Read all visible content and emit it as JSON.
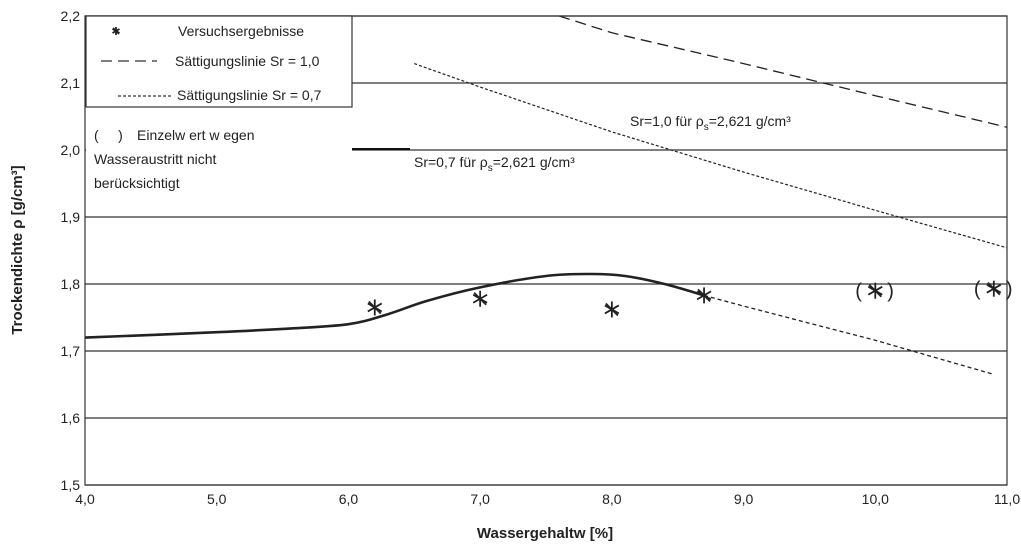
{
  "chart_data": {
    "type": "scatter",
    "xlabel": "Wassergehaltw [%]",
    "ylabel": "Trockendichte ρ [g/cm³]",
    "xlim": [
      4.0,
      11.0
    ],
    "ylim": [
      1.5,
      2.2
    ],
    "x_ticks": [
      "4,0",
      "5,0",
      "6,0",
      "7,0",
      "8,0",
      "9,0",
      "10,0",
      "11,0"
    ],
    "y_ticks": [
      "1,5",
      "1,6",
      "1,7",
      "1,8",
      "1,9",
      "2,0",
      "2,1",
      "2,2"
    ],
    "grid": "horizontal",
    "legend": {
      "items": [
        {
          "label": "Versuchsergebnisse",
          "marker": "asterisk"
        },
        {
          "label": "Sättigungslinie Sr = 1,0",
          "line": "long-dash"
        },
        {
          "label": "Sättigungslinie Sr = 0,7",
          "line": "short-dash"
        }
      ],
      "note_marker": "(     )",
      "note_lines": [
        "Einzelw ert w egen",
        "Wasseraustritt nicht",
        "berücksichtigt"
      ]
    },
    "series": [
      {
        "name": "Versuchsergebnisse",
        "kind": "points",
        "points": [
          {
            "x": 6.2,
            "y": 1.765,
            "excluded": false
          },
          {
            "x": 7.0,
            "y": 1.778,
            "excluded": false
          },
          {
            "x": 8.0,
            "y": 1.762,
            "excluded": false
          },
          {
            "x": 8.7,
            "y": 1.783,
            "excluded": false
          },
          {
            "x": 10.0,
            "y": 1.79,
            "excluded": true
          },
          {
            "x": 10.9,
            "y": 1.793,
            "excluded": true
          }
        ]
      },
      {
        "name": "Sättigungslinie Sr = 1,0",
        "kind": "line",
        "style": "long-dash",
        "x": [
          7.6,
          8.0,
          9.0,
          10.0,
          11.0
        ],
        "y": [
          2.2,
          2.175,
          2.129,
          2.081,
          2.034
        ]
      },
      {
        "name": "Sättigungslinie Sr = 0,7",
        "kind": "line",
        "style": "short-dash",
        "x": [
          6.5,
          7.0,
          8.0,
          9.0,
          10.0,
          11.0
        ],
        "y": [
          2.129,
          2.094,
          2.027,
          1.967,
          1.91,
          1.854
        ]
      },
      {
        "kind": "line",
        "style": "solid",
        "x": [
          4.0,
          5.0,
          5.5,
          6.0,
          6.3,
          6.6,
          7.0,
          7.5,
          7.85,
          8.1,
          8.4,
          8.7
        ],
        "y": [
          1.72,
          1.728,
          1.733,
          1.74,
          1.755,
          1.775,
          1.795,
          1.812,
          1.815,
          1.812,
          1.8,
          1.783
        ]
      },
      {
        "kind": "line",
        "style": "short-dash",
        "x": [
          8.7,
          9.0,
          10.0,
          10.9
        ],
        "y": [
          1.783,
          1.767,
          1.716,
          1.665
        ]
      }
    ],
    "annotations": [
      {
        "text": "Sr=1,0 für ρ",
        "sub": "s",
        "tail": "=2,621 g/cm³"
      },
      {
        "text": "Sr=0,7 für ρ",
        "sub": "s",
        "tail": "=2,621 g/cm³"
      }
    ]
  }
}
